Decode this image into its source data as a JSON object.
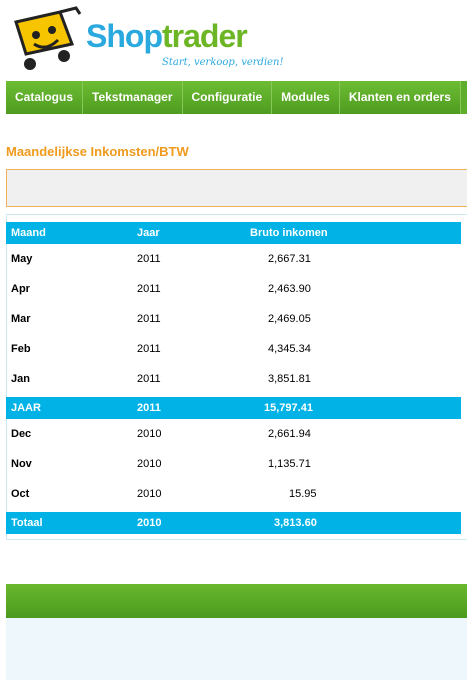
{
  "brand": {
    "part1": "Shop",
    "part2": "trader",
    "tagline": "Start, verkoop, verdien!"
  },
  "nav": [
    {
      "label": "Catalogus"
    },
    {
      "label": "Tekstmanager"
    },
    {
      "label": "Configuratie"
    },
    {
      "label": "Modules"
    },
    {
      "label": "Klanten en orders"
    }
  ],
  "page": {
    "title": "Maandelijkse Inkomsten/BTW"
  },
  "table": {
    "headers": {
      "month": "Maand",
      "year": "Jaar",
      "gross": "Bruto inkomen"
    },
    "group2011": [
      {
        "month": "May",
        "year": "2011",
        "gross": "2,667.31"
      },
      {
        "month": "Apr",
        "year": "2011",
        "gross": "2,463.90"
      },
      {
        "month": "Mar",
        "year": "2011",
        "gross": "2,469.05"
      },
      {
        "month": "Feb",
        "year": "2011",
        "gross": "4,345.34"
      },
      {
        "month": "Jan",
        "year": "2011",
        "gross": "3,851.81"
      }
    ],
    "total2011": {
      "label": "JAAR",
      "year": "2011",
      "gross": "15,797.41"
    },
    "group2010": [
      {
        "month": "Dec",
        "year": "2010",
        "gross": "2,661.94"
      },
      {
        "month": "Nov",
        "year": "2010",
        "gross": "1,135.71"
      },
      {
        "month": "Oct",
        "year": "2010",
        "gross": "15.95"
      }
    ],
    "total2010": {
      "label": "Totaal",
      "year": "2010",
      "gross": "3,813.60"
    }
  },
  "colors": {
    "accent": "#00b2e6",
    "nav": "#5fae2b",
    "title": "#f09a1e"
  }
}
